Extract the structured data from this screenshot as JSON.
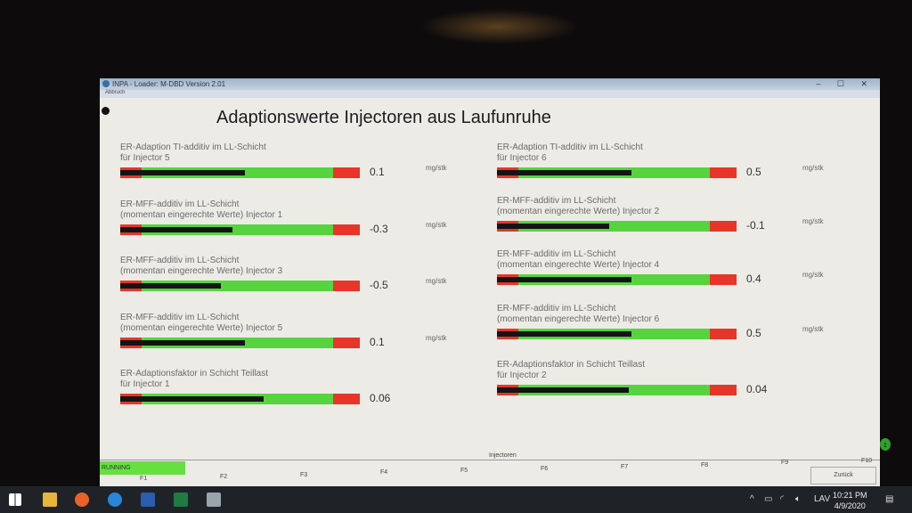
{
  "window": {
    "title": "INPA - Loader: M-DBD Version 2.01",
    "menu": "Abbruch",
    "heading": "Adaptionswerte Injectoren aus Laufunruhe",
    "controls": "– ☐ ✕"
  },
  "gauges_left": [
    {
      "label": "ER-Adaption TI-additiv im LL-Schicht\nfür Injector 5",
      "value": "0.1",
      "unit": "mg/stk",
      "fill": 0.52
    },
    {
      "label": "ER-MFF-additiv im LL-Schicht\n(momentan eingerechte Werte) Injector 1",
      "value": "-0.3",
      "unit": "mg/stk",
      "fill": 0.47
    },
    {
      "label": "ER-MFF-additiv im LL-Schicht\n(momentan eingerechte Werte) Injector 3",
      "value": "-0.5",
      "unit": "mg/stk",
      "fill": 0.42
    },
    {
      "label": "ER-MFF-additiv im LL-Schicht\n(momentan eingerechte Werte) Injector 5",
      "value": "0.1",
      "unit": "mg/stk",
      "fill": 0.52
    },
    {
      "label": "ER-Adaptionsfaktor in Schicht Teillast\nfür Injector 1",
      "value": "0.06",
      "unit": "",
      "fill": 0.6
    }
  ],
  "gauges_right": [
    {
      "label": "ER-Adaption TI-additiv im LL-Schicht\nfür Injector 6",
      "value": "0.5",
      "unit": "mg/stk",
      "fill": 0.56
    },
    {
      "label": "ER-MFF-additiv im LL-Schicht\n(momentan eingerechte Werte) Injector 2",
      "value": "-0.1",
      "unit": "mg/stk",
      "fill": 0.47
    },
    {
      "label": "ER-MFF-additiv im LL-Schicht\n(momentan eingerechte Werte) Injector 4",
      "value": "0.4",
      "unit": "mg/stk",
      "fill": 0.56
    },
    {
      "label": "ER-MFF-additiv im LL-Schicht\n(momentan eingerechte Werte) Injector 6",
      "value": "0.5",
      "unit": "mg/stk",
      "fill": 0.56
    },
    {
      "label": "ER-Adaptionsfaktor in Schicht Teillast\nfür Injector 2",
      "value": "0.04",
      "unit": "",
      "fill": 0.55
    }
  ],
  "statusbar": {
    "status": "RUNNING",
    "group": "Injectoren",
    "fkeys": [
      "F1",
      "F2",
      "F3",
      "F4",
      "F5",
      "F6",
      "F7",
      "F8",
      "F9",
      "F10"
    ],
    "f10_label": "Zurück"
  },
  "taskbar": {
    "lang": "LAV",
    "time": "10:21 PM",
    "date": "4/9/2020",
    "tray": "^"
  },
  "colors": {
    "green": "#55d43e",
    "red": "#e8352a",
    "bar_fill": "#141414"
  }
}
